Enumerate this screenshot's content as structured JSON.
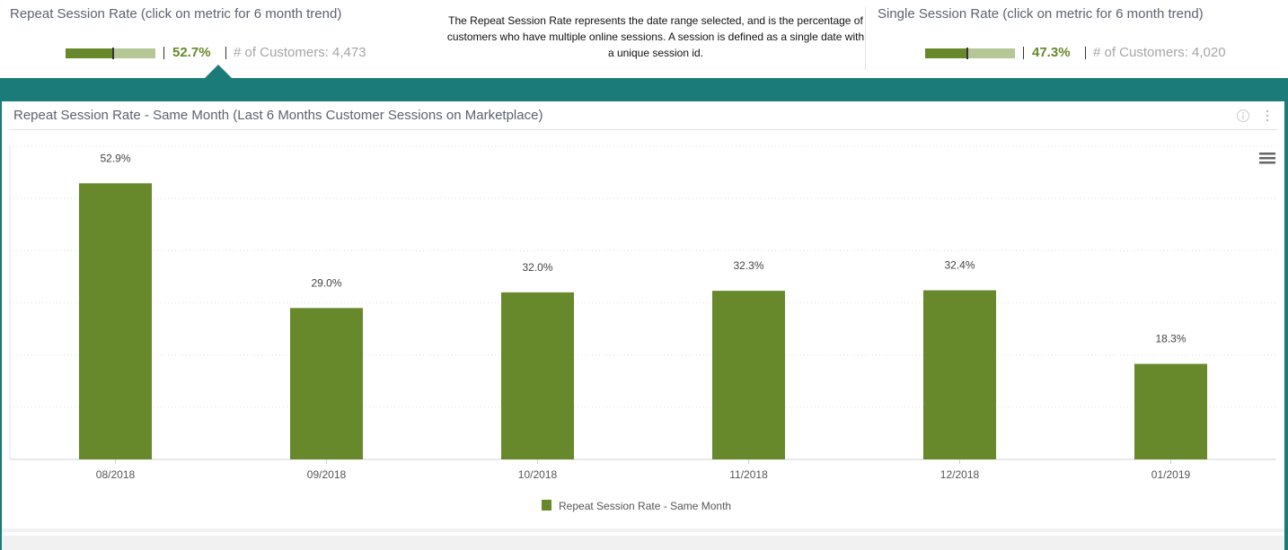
{
  "kpis": [
    {
      "title": "Repeat Session Rate (click on metric for 6 month trend)",
      "value": "52.7%",
      "fraction": 0.527,
      "customers_label": "# of Customers:",
      "customers": "4,473"
    },
    {
      "title": "Single Session Rate (click on metric for 6 month trend)",
      "value": "47.3%",
      "fraction": 0.473,
      "customers_label": "# of Customers:",
      "customers": "4,020"
    }
  ],
  "description": "The Repeat Session Rate represents the date range selected, and is the percentage of customers who have multiple online sessions.  A session is defined as a single date with a unique session id.",
  "panel": {
    "title": "Repeat Session Rate - Same Month (Last 6 Months Customer Sessions on Marketplace)"
  },
  "colors": {
    "accent": "#67882b",
    "teal": "#1b7b79",
    "light": "#b5c697"
  },
  "chart_data": {
    "type": "bar",
    "title": "",
    "categories": [
      "08/2018",
      "09/2018",
      "10/2018",
      "11/2018",
      "12/2018",
      "01/2019"
    ],
    "values": [
      52.9,
      29.0,
      32.0,
      32.3,
      32.4,
      18.3
    ],
    "labels": [
      "52.9%",
      "29.0%",
      "32.0%",
      "32.3%",
      "32.4%",
      "18.3%"
    ],
    "series_name": "Repeat Session Rate - Same Month",
    "ylim": [
      0,
      60
    ],
    "grid": true,
    "legend": "bottom-center"
  }
}
